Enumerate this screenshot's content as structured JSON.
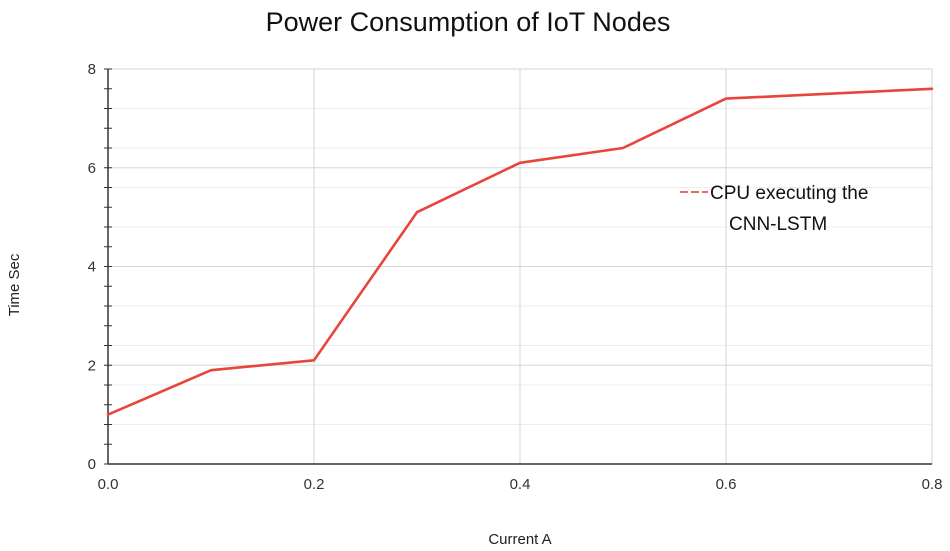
{
  "chart_data": {
    "type": "line",
    "title": "Power Consumption of IoT Nodes",
    "xlabel": "Current A",
    "ylabel": "Time Sec",
    "xlim": [
      0,
      0.8
    ],
    "ylim": [
      0,
      8
    ],
    "x_ticks": [
      "0.0",
      "0.2",
      "0.4",
      "0.6",
      "0.8"
    ],
    "y_ticks": [
      "0",
      "2",
      "4",
      "6",
      "8"
    ],
    "grid": true,
    "legend_position": "right",
    "series": [
      {
        "name": "CPU executing the CNN-LSTM",
        "legend_lines": [
          "CPU executing the",
          "CNN-LSTM"
        ],
        "color": "#e8453c",
        "x": [
          0.0,
          0.1,
          0.2,
          0.3,
          0.4,
          0.5,
          0.6,
          0.8
        ],
        "y": [
          1.0,
          1.9,
          2.1,
          5.1,
          6.1,
          6.4,
          7.4,
          7.6
        ]
      }
    ]
  }
}
